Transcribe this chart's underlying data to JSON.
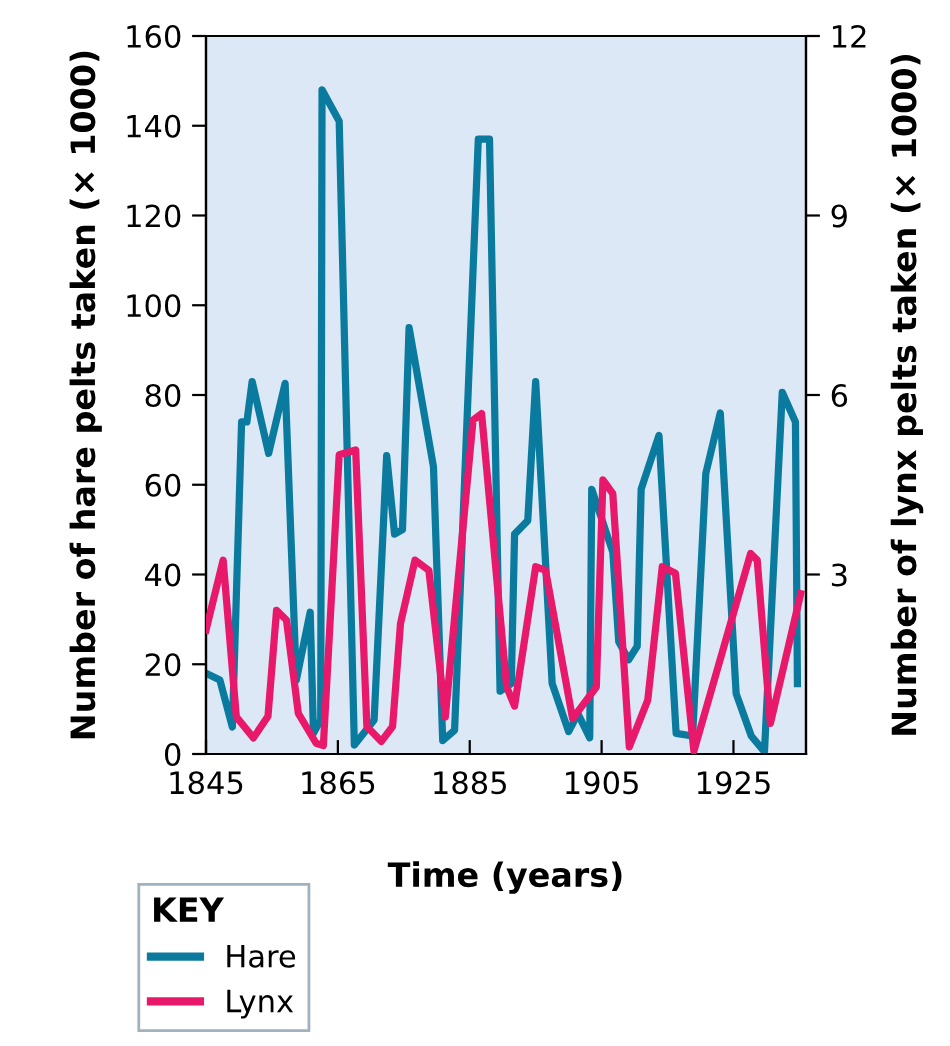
{
  "chart_data": {
    "type": "line",
    "xlabel": "Time (years)",
    "ylabel": "Number of hare pelts taken (× 1000)",
    "y2label": "Number of lynx pelts taken (× 1000)",
    "legend_title": "KEY",
    "legend": "bottom left",
    "xlim": [
      1845,
      1936
    ],
    "xticks": [
      1845,
      1865,
      1885,
      1905,
      1925
    ],
    "ylim": [
      0,
      160
    ],
    "yticks": [
      0,
      20,
      40,
      60,
      80,
      100,
      120,
      140,
      160
    ],
    "y2lim": [
      0,
      12
    ],
    "y2ticks": [
      3,
      6,
      9,
      12
    ],
    "series": [
      {
        "name": "Hare",
        "color": "#0a7a9e",
        "x": [
          1845,
          1847.1,
          1849,
          1850.4,
          1851.2,
          1852,
          1854.5,
          1857,
          1858.7,
          1860.8,
          1861.3,
          1862.4,
          1862.6,
          1865.2,
          1867.5,
          1870.5,
          1872.4,
          1873.6,
          1874.8,
          1875.8,
          1879.5,
          1880.9,
          1882.7,
          1886.3,
          1888,
          1889.6,
          1891.3,
          1891.8,
          1893.8,
          1895,
          1897.5,
          1900,
          1901.4,
          1903.2,
          1903.5,
          1906.7,
          1907.6,
          1909.1,
          1910.4,
          1911,
          1913.7,
          1916.3,
          1918.8,
          1920.8,
          1923,
          1925.4,
          1927.7,
          1929.7,
          1932.4,
          1934.4,
          1934.7
        ],
        "values": [
          18,
          16.5,
          6,
          74,
          74,
          83,
          67,
          82.6,
          16.5,
          31.6,
          4.6,
          7.6,
          148,
          141,
          2,
          7.6,
          66.5,
          49,
          50,
          95,
          64,
          3,
          5.3,
          137,
          137,
          14,
          15.7,
          49,
          52,
          83,
          15.7,
          5,
          9,
          3.6,
          59,
          45,
          25,
          21,
          24,
          59,
          71,
          4.6,
          4,
          62.5,
          76,
          13.5,
          4,
          0.5,
          80.6,
          74,
          15.7
        ]
      },
      {
        "name": "Lynx",
        "color": "#e8196a",
        "axis": "y2",
        "x": [
          1845,
          1847.6,
          1849.6,
          1852.2,
          1854.4,
          1855.7,
          1857.2,
          1859,
          1861.7,
          1862.8,
          1865.2,
          1867.7,
          1869.4,
          1871.6,
          1873.3,
          1874.5,
          1876.7,
          1878.8,
          1881.3,
          1885.5,
          1886.8,
          1890.6,
          1891.8,
          1895,
          1896.5,
          1900.6,
          1904.2,
          1905.2,
          1906.7,
          1909.2,
          1912,
          1914.2,
          1916.2,
          1919,
          1927.6,
          1928.6,
          1930.6,
          1935.2
        ],
        "values": [
          2.07,
          3.24,
          0.62,
          0.27,
          0.63,
          2.4,
          2.24,
          0.68,
          0.18,
          0.14,
          5.0,
          5.08,
          0.46,
          0.21,
          0.46,
          2.18,
          3.24,
          3.07,
          0.62,
          5.58,
          5.69,
          1.12,
          0.8,
          3.13,
          3.07,
          0.59,
          1.12,
          4.58,
          4.35,
          0.12,
          0.9,
          3.13,
          3.02,
          0.05,
          3.35,
          3.24,
          0.51,
          2.68
        ]
      }
    ]
  }
}
